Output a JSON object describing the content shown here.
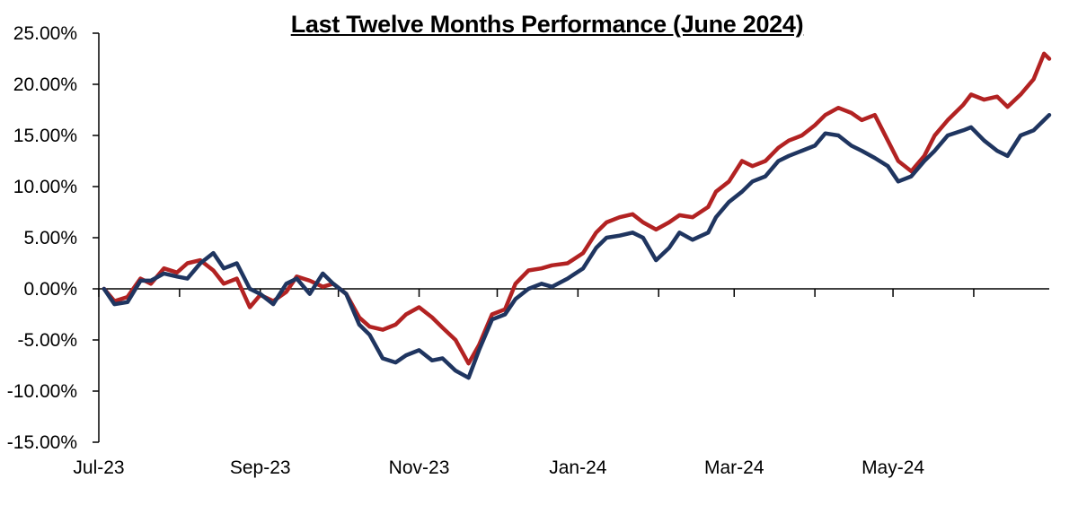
{
  "chart_data": {
    "type": "line",
    "title": "Last Twelve Months Performance (June 2024)",
    "xlabel": "",
    "ylabel": "",
    "y_tick_labels": [
      "25.00%",
      "20.00%",
      "15.00%",
      "10.00%",
      "5.00%",
      "0.00%",
      "-5.00%",
      "-10.00%",
      "-15.00%"
    ],
    "y_tick_values": [
      25,
      20,
      15,
      10,
      5,
      0,
      -5,
      -10,
      -15
    ],
    "x_tick_labels": [
      "Jul-23",
      "Sep-23",
      "Nov-23",
      "Jan-24",
      "Mar-24",
      "May-24"
    ],
    "x_tick_dates": [
      "2023-07-01",
      "2023-09-01",
      "2023-11-01",
      "2024-01-01",
      "2024-03-01",
      "2024-05-01"
    ],
    "x_minor_tick_dates": [
      "2023-08-01",
      "2023-10-01",
      "2023-12-01",
      "2024-02-01",
      "2024-04-01",
      "2024-06-01"
    ],
    "xlim": [
      "2023-07-01",
      "2024-06-30"
    ],
    "ylim": [
      -15,
      25
    ],
    "grid": false,
    "legend": "none",
    "series": [
      {
        "color": "#b22222",
        "points": [
          [
            "2023-07-03",
            0.0
          ],
          [
            "2023-07-07",
            -1.2
          ],
          [
            "2023-07-12",
            -0.8
          ],
          [
            "2023-07-17",
            1.0
          ],
          [
            "2023-07-21",
            0.5
          ],
          [
            "2023-07-26",
            2.0
          ],
          [
            "2023-07-31",
            1.6
          ],
          [
            "2023-08-04",
            2.5
          ],
          [
            "2023-08-09",
            2.8
          ],
          [
            "2023-08-14",
            1.8
          ],
          [
            "2023-08-18",
            0.5
          ],
          [
            "2023-08-23",
            1.0
          ],
          [
            "2023-08-28",
            -1.8
          ],
          [
            "2023-09-01",
            -0.6
          ],
          [
            "2023-09-06",
            -1.2
          ],
          [
            "2023-09-11",
            -0.3
          ],
          [
            "2023-09-15",
            1.2
          ],
          [
            "2023-09-20",
            0.8
          ],
          [
            "2023-09-25",
            0.2
          ],
          [
            "2023-09-29",
            0.5
          ],
          [
            "2023-10-04",
            -0.5
          ],
          [
            "2023-10-09",
            -2.8
          ],
          [
            "2023-10-13",
            -3.7
          ],
          [
            "2023-10-18",
            -4.0
          ],
          [
            "2023-10-23",
            -3.5
          ],
          [
            "2023-10-27",
            -2.5
          ],
          [
            "2023-11-01",
            -1.8
          ],
          [
            "2023-11-06",
            -2.8
          ],
          [
            "2023-11-10",
            -3.8
          ],
          [
            "2023-11-15",
            -5.0
          ],
          [
            "2023-11-20",
            -7.3
          ],
          [
            "2023-11-24",
            -5.5
          ],
          [
            "2023-11-29",
            -2.5
          ],
          [
            "2023-12-04",
            -2.0
          ],
          [
            "2023-12-08",
            0.5
          ],
          [
            "2023-12-13",
            1.8
          ],
          [
            "2023-12-18",
            2.0
          ],
          [
            "2023-12-22",
            2.3
          ],
          [
            "2023-12-28",
            2.5
          ],
          [
            "2024-01-03",
            3.5
          ],
          [
            "2024-01-08",
            5.5
          ],
          [
            "2024-01-12",
            6.5
          ],
          [
            "2024-01-17",
            7.0
          ],
          [
            "2024-01-22",
            7.3
          ],
          [
            "2024-01-26",
            6.5
          ],
          [
            "2024-01-31",
            5.8
          ],
          [
            "2024-02-05",
            6.5
          ],
          [
            "2024-02-09",
            7.2
          ],
          [
            "2024-02-14",
            7.0
          ],
          [
            "2024-02-20",
            8.0
          ],
          [
            "2024-02-23",
            9.5
          ],
          [
            "2024-02-28",
            10.5
          ],
          [
            "2024-03-04",
            12.5
          ],
          [
            "2024-03-08",
            12.0
          ],
          [
            "2024-03-13",
            12.5
          ],
          [
            "2024-03-18",
            13.8
          ],
          [
            "2024-03-22",
            14.5
          ],
          [
            "2024-03-27",
            15.0
          ],
          [
            "2024-04-01",
            16.0
          ],
          [
            "2024-04-05",
            17.0
          ],
          [
            "2024-04-10",
            17.7
          ],
          [
            "2024-04-15",
            17.2
          ],
          [
            "2024-04-19",
            16.5
          ],
          [
            "2024-04-24",
            17.0
          ],
          [
            "2024-04-29",
            14.5
          ],
          [
            "2024-05-03",
            12.5
          ],
          [
            "2024-05-08",
            11.5
          ],
          [
            "2024-05-13",
            13.0
          ],
          [
            "2024-05-17",
            15.0
          ],
          [
            "2024-05-22",
            16.5
          ],
          [
            "2024-05-28",
            18.0
          ],
          [
            "2024-05-31",
            19.0
          ],
          [
            "2024-06-05",
            18.5
          ],
          [
            "2024-06-10",
            18.8
          ],
          [
            "2024-06-14",
            17.8
          ],
          [
            "2024-06-19",
            19.0
          ],
          [
            "2024-06-24",
            20.5
          ],
          [
            "2024-06-28",
            23.0
          ],
          [
            "2024-06-30",
            22.5
          ]
        ]
      },
      {
        "color": "#1f3560",
        "points": [
          [
            "2023-07-03",
            0.0
          ],
          [
            "2023-07-07",
            -1.5
          ],
          [
            "2023-07-12",
            -1.3
          ],
          [
            "2023-07-17",
            0.8
          ],
          [
            "2023-07-21",
            0.8
          ],
          [
            "2023-07-26",
            1.5
          ],
          [
            "2023-07-31",
            1.2
          ],
          [
            "2023-08-04",
            1.0
          ],
          [
            "2023-08-09",
            2.5
          ],
          [
            "2023-08-14",
            3.5
          ],
          [
            "2023-08-18",
            2.0
          ],
          [
            "2023-08-23",
            2.5
          ],
          [
            "2023-08-28",
            0.0
          ],
          [
            "2023-09-01",
            -0.5
          ],
          [
            "2023-09-06",
            -1.5
          ],
          [
            "2023-09-11",
            0.5
          ],
          [
            "2023-09-15",
            1.0
          ],
          [
            "2023-09-20",
            -0.5
          ],
          [
            "2023-09-25",
            1.5
          ],
          [
            "2023-09-29",
            0.5
          ],
          [
            "2023-10-04",
            -0.5
          ],
          [
            "2023-10-09",
            -3.5
          ],
          [
            "2023-10-13",
            -4.5
          ],
          [
            "2023-10-18",
            -6.8
          ],
          [
            "2023-10-23",
            -7.2
          ],
          [
            "2023-10-27",
            -6.5
          ],
          [
            "2023-11-01",
            -6.0
          ],
          [
            "2023-11-06",
            -7.0
          ],
          [
            "2023-11-10",
            -6.8
          ],
          [
            "2023-11-15",
            -8.0
          ],
          [
            "2023-11-20",
            -8.7
          ],
          [
            "2023-11-24",
            -6.0
          ],
          [
            "2023-11-29",
            -3.0
          ],
          [
            "2023-12-04",
            -2.5
          ],
          [
            "2023-12-08",
            -1.0
          ],
          [
            "2023-12-13",
            0.0
          ],
          [
            "2023-12-18",
            0.5
          ],
          [
            "2023-12-22",
            0.2
          ],
          [
            "2023-12-28",
            1.0
          ],
          [
            "2024-01-03",
            2.0
          ],
          [
            "2024-01-08",
            4.0
          ],
          [
            "2024-01-12",
            5.0
          ],
          [
            "2024-01-17",
            5.2
          ],
          [
            "2024-01-22",
            5.5
          ],
          [
            "2024-01-26",
            5.0
          ],
          [
            "2024-01-31",
            2.8
          ],
          [
            "2024-02-05",
            4.0
          ],
          [
            "2024-02-09",
            5.5
          ],
          [
            "2024-02-14",
            4.8
          ],
          [
            "2024-02-20",
            5.5
          ],
          [
            "2024-02-23",
            7.0
          ],
          [
            "2024-02-28",
            8.5
          ],
          [
            "2024-03-04",
            9.5
          ],
          [
            "2024-03-08",
            10.5
          ],
          [
            "2024-03-13",
            11.0
          ],
          [
            "2024-03-18",
            12.5
          ],
          [
            "2024-03-22",
            13.0
          ],
          [
            "2024-03-27",
            13.5
          ],
          [
            "2024-04-01",
            14.0
          ],
          [
            "2024-04-05",
            15.2
          ],
          [
            "2024-04-10",
            15.0
          ],
          [
            "2024-04-15",
            14.0
          ],
          [
            "2024-04-19",
            13.5
          ],
          [
            "2024-04-24",
            12.8
          ],
          [
            "2024-04-29",
            12.0
          ],
          [
            "2024-05-03",
            10.5
          ],
          [
            "2024-05-08",
            11.0
          ],
          [
            "2024-05-13",
            12.5
          ],
          [
            "2024-05-17",
            13.5
          ],
          [
            "2024-05-22",
            15.0
          ],
          [
            "2024-05-28",
            15.5
          ],
          [
            "2024-05-31",
            15.8
          ],
          [
            "2024-06-05",
            14.5
          ],
          [
            "2024-06-10",
            13.5
          ],
          [
            "2024-06-14",
            13.0
          ],
          [
            "2024-06-19",
            15.0
          ],
          [
            "2024-06-24",
            15.5
          ],
          [
            "2024-06-28",
            16.5
          ],
          [
            "2024-06-30",
            17.0
          ]
        ]
      }
    ]
  }
}
